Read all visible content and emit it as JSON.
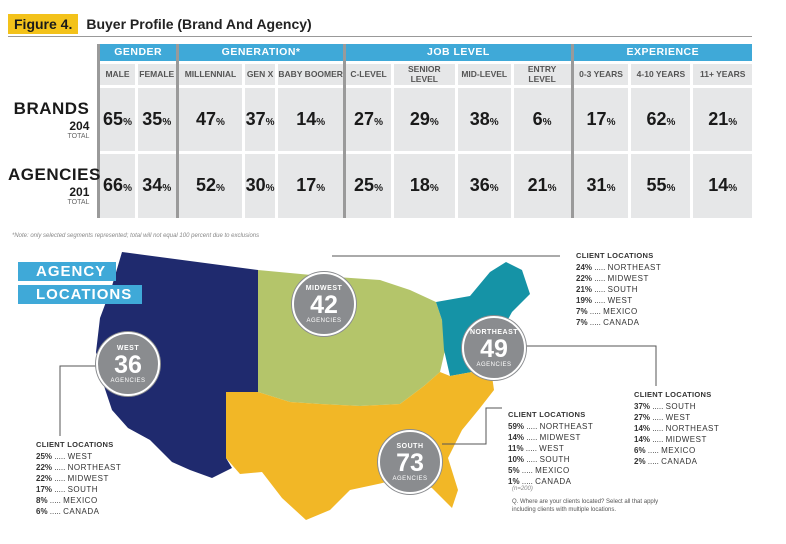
{
  "figure": {
    "tag": "Figure 4.",
    "title": "Buyer Profile (Brand And Agency)"
  },
  "chart_data": [
    {
      "type": "table",
      "groups": [
        {
          "name": "GENDER",
          "columns": [
            "MALE",
            "FEMALE"
          ]
        },
        {
          "name": "GENERATION*",
          "columns": [
            "MILLENNIAL",
            "GEN X",
            "BABY BOOMER"
          ]
        },
        {
          "name": "JOB LEVEL",
          "columns": [
            "C-LEVEL",
            "SENIOR LEVEL",
            "MID-LEVEL",
            "ENTRY LEVEL"
          ]
        },
        {
          "name": "EXPERIENCE",
          "columns": [
            "0-3 YEARS",
            "4-10 YEARS",
            "11+ YEARS"
          ]
        }
      ],
      "rows": [
        {
          "label": "BRANDS",
          "count": "204",
          "total_label": "TOTAL",
          "values": [
            65,
            35,
            47,
            37,
            14,
            27,
            29,
            38,
            6,
            17,
            62,
            21
          ]
        },
        {
          "label": "AGENCIES",
          "count": "201",
          "total_label": "TOTAL",
          "values": [
            66,
            34,
            52,
            30,
            17,
            25,
            18,
            36,
            21,
            31,
            55,
            14
          ]
        }
      ],
      "unit": "%",
      "note": "*Note: only selected segments represented; total will not equal 100 percent due to exclusions"
    },
    {
      "type": "map",
      "title_lines": [
        "AGENCY",
        "LOCATIONS"
      ],
      "regions": [
        {
          "name": "WEST",
          "count": 36,
          "color": "#1f2a6e"
        },
        {
          "name": "MIDWEST",
          "count": 42,
          "color": "#b4c56a"
        },
        {
          "name": "NORTHEAST",
          "count": 49,
          "color": "#1593a6"
        },
        {
          "name": "SOUTH",
          "count": 73,
          "color": "#f2b726"
        }
      ],
      "circle_sublabel": "AGENCIES"
    }
  ],
  "client_locations": {
    "title": "CLIENT LOCATIONS",
    "west": [
      {
        "pct": "25%",
        "region": "WEST"
      },
      {
        "pct": "22%",
        "region": "NORTHEAST"
      },
      {
        "pct": "22%",
        "region": "MIDWEST"
      },
      {
        "pct": "17%",
        "region": "SOUTH"
      },
      {
        "pct": "8%",
        "region": "MEXICO"
      },
      {
        "pct": "6%",
        "region": "CANADA"
      }
    ],
    "midwest": [
      {
        "pct": "24%",
        "region": "NORTHEAST"
      },
      {
        "pct": "22%",
        "region": "MIDWEST"
      },
      {
        "pct": "21%",
        "region": "SOUTH"
      },
      {
        "pct": "19%",
        "region": "WEST"
      },
      {
        "pct": "7%",
        "region": "MEXICO"
      },
      {
        "pct": "7%",
        "region": "CANADA"
      }
    ],
    "northeast": [
      {
        "pct": "37%",
        "region": "SOUTH"
      },
      {
        "pct": "27%",
        "region": "WEST"
      },
      {
        "pct": "14%",
        "region": "NORTHEAST"
      },
      {
        "pct": "14%",
        "region": "MIDWEST"
      },
      {
        "pct": "6%",
        "region": "MEXICO"
      },
      {
        "pct": "2%",
        "region": "CANADA"
      }
    ],
    "south": [
      {
        "pct": "59%",
        "region": "NORTHEAST"
      },
      {
        "pct": "14%",
        "region": "MIDWEST"
      },
      {
        "pct": "11%",
        "region": "WEST"
      },
      {
        "pct": "10%",
        "region": "SOUTH"
      },
      {
        "pct": "5%",
        "region": "MEXICO"
      },
      {
        "pct": "1%",
        "region": "CANADA"
      }
    ]
  },
  "footnote": {
    "n": "(n=200)",
    "line1": "Q. Where are your clients located? Select all that apply",
    "line2": "including clients with multiple locations."
  },
  "colors": {
    "table_head": "#3fa9d8",
    "cell": "#e6e7e8",
    "tag": "#f3c21a",
    "circle": "#8a8c8f"
  }
}
